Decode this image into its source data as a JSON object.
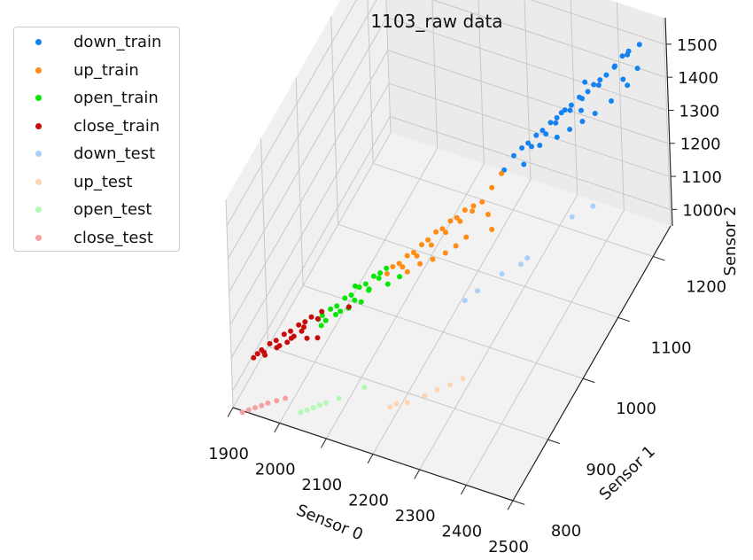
{
  "chart_data": {
    "type": "scatter",
    "title": "1103_raw data",
    "xlabel": "Sensor 0",
    "ylabel": "Sensor 1",
    "zlabel": "Sensor 2",
    "xlim": [
      1900,
      2500
    ],
    "ylim": [
      800,
      1250
    ],
    "zlim": [
      950,
      1580
    ],
    "xticks": [
      "1900",
      "2000",
      "2100",
      "2200",
      "2300",
      "2400",
      "2500"
    ],
    "yticks": [
      "800",
      "900",
      "1000",
      "1100",
      "1200"
    ],
    "zticks": [
      "1000",
      "1100",
      "1200",
      "1300",
      "1400",
      "1500"
    ],
    "legend_position": "upper-left",
    "grid": true,
    "series": [
      {
        "name": "down_train",
        "color": "#1482f0",
        "points": [
          [
            2470,
            1220,
            1540
          ],
          [
            2450,
            1215,
            1520
          ],
          [
            2440,
            1210,
            1510
          ],
          [
            2455,
            1205,
            1530
          ],
          [
            2430,
            1200,
            1490
          ],
          [
            2435,
            1195,
            1505
          ],
          [
            2420,
            1190,
            1480
          ],
          [
            2410,
            1185,
            1470
          ],
          [
            2400,
            1180,
            1460
          ],
          [
            2415,
            1175,
            1475
          ],
          [
            2395,
            1170,
            1455
          ],
          [
            2380,
            1165,
            1440
          ],
          [
            2390,
            1160,
            1450
          ],
          [
            2370,
            1155,
            1430
          ],
          [
            2360,
            1150,
            1420
          ],
          [
            2375,
            1145,
            1435
          ],
          [
            2350,
            1140,
            1410
          ],
          [
            2340,
            1135,
            1400
          ],
          [
            2355,
            1130,
            1415
          ],
          [
            2330,
            1125,
            1390
          ],
          [
            2320,
            1120,
            1380
          ],
          [
            2345,
            1115,
            1405
          ],
          [
            2310,
            1110,
            1370
          ],
          [
            2300,
            1105,
            1360
          ],
          [
            2325,
            1100,
            1385
          ],
          [
            2290,
            1095,
            1350
          ],
          [
            2465,
            1190,
            1470
          ],
          [
            2445,
            1170,
            1450
          ],
          [
            2425,
            1150,
            1440
          ],
          [
            2405,
            1140,
            1425
          ],
          [
            2385,
            1130,
            1410
          ],
          [
            2365,
            1120,
            1395
          ],
          [
            2335,
            1110,
            1375
          ],
          [
            2315,
            1090,
            1345
          ],
          [
            2280,
            1080,
            1330
          ],
          [
            2480,
            1200,
            1510
          ],
          [
            2460,
            1185,
            1495
          ],
          [
            2385,
            1175,
            1470
          ],
          [
            2395,
            1150,
            1435
          ],
          [
            2360,
            1140,
            1430
          ]
        ]
      },
      {
        "name": "up_train",
        "color": "#ff8c14",
        "points": [
          [
            2230,
            1080,
            1210
          ],
          [
            2215,
            1075,
            1200
          ],
          [
            2200,
            1070,
            1190
          ],
          [
            2220,
            1065,
            1205
          ],
          [
            2190,
            1060,
            1180
          ],
          [
            2180,
            1055,
            1175
          ],
          [
            2205,
            1050,
            1195
          ],
          [
            2170,
            1045,
            1165
          ],
          [
            2160,
            1040,
            1160
          ],
          [
            2185,
            1035,
            1180
          ],
          [
            2150,
            1030,
            1150
          ],
          [
            2140,
            1025,
            1140
          ],
          [
            2165,
            1020,
            1160
          ],
          [
            2130,
            1015,
            1130
          ],
          [
            2120,
            1010,
            1125
          ],
          [
            2145,
            1005,
            1145
          ],
          [
            2110,
            1000,
            1115
          ],
          [
            2100,
            995,
            1110
          ],
          [
            2125,
            990,
            1130
          ],
          [
            2095,
            985,
            1105
          ],
          [
            2240,
            1095,
            1230
          ],
          [
            2250,
            1070,
            1200
          ],
          [
            2225,
            1040,
            1175
          ],
          [
            2210,
            1030,
            1160
          ],
          [
            2195,
            1020,
            1150
          ],
          [
            2175,
            1010,
            1140
          ],
          [
            2155,
            1000,
            1135
          ],
          [
            2135,
            990,
            1120
          ],
          [
            2250,
            1110,
            1250
          ],
          [
            2265,
            1060,
            1180
          ]
        ]
      },
      {
        "name": "open_train",
        "color": "#05e605",
        "points": [
          [
            2090,
            990,
            1110
          ],
          [
            2080,
            985,
            1100
          ],
          [
            2070,
            980,
            1095
          ],
          [
            2085,
            975,
            1105
          ],
          [
            2060,
            970,
            1085
          ],
          [
            2050,
            965,
            1080
          ],
          [
            2075,
            960,
            1095
          ],
          [
            2040,
            955,
            1070
          ],
          [
            2030,
            950,
            1065
          ],
          [
            2055,
            945,
            1080
          ],
          [
            2020,
            940,
            1055
          ],
          [
            2010,
            935,
            1050
          ],
          [
            2035,
            930,
            1065
          ],
          [
            2000,
            925,
            1045
          ],
          [
            1995,
            920,
            1040
          ],
          [
            2015,
            915,
            1055
          ],
          [
            2065,
            950,
            1070
          ],
          [
            2045,
            940,
            1060
          ],
          [
            2025,
            930,
            1050
          ],
          [
            2100,
            980,
            1085
          ],
          [
            2110,
            1000,
            1075
          ],
          [
            2005,
            915,
            1035
          ],
          [
            2045,
            960,
            1090
          ],
          [
            2070,
            965,
            1080
          ]
        ]
      },
      {
        "name": "close_train",
        "color": "#c80a0a",
        "points": [
          [
            1980,
            920,
            1040
          ],
          [
            1970,
            915,
            1030
          ],
          [
            1960,
            910,
            1025
          ],
          [
            1975,
            905,
            1035
          ],
          [
            1950,
            900,
            1020
          ],
          [
            1940,
            895,
            1015
          ],
          [
            1965,
            890,
            1030
          ],
          [
            1930,
            885,
            1010
          ],
          [
            1920,
            880,
            1005
          ],
          [
            1945,
            875,
            1020
          ],
          [
            1910,
            870,
            1000
          ],
          [
            1905,
            865,
            995
          ],
          [
            1925,
            860,
            1010
          ],
          [
            1955,
            895,
            1010
          ],
          [
            1935,
            880,
            1000
          ],
          [
            1915,
            870,
            995
          ],
          [
            1990,
            925,
            1030
          ],
          [
            1985,
            900,
            1015
          ],
          [
            2000,
            910,
            1005
          ],
          [
            1900,
            860,
            990
          ],
          [
            2030,
            960,
            1020
          ],
          [
            1995,
            930,
            1045
          ],
          [
            1950,
            890,
            1005
          ],
          [
            1970,
            905,
            1020
          ]
        ]
      },
      {
        "name": "down_test",
        "color": "#a8d0f8",
        "points": [
          [
            2470,
            1080,
            1310
          ],
          [
            2440,
            1060,
            1300
          ],
          [
            2380,
            1010,
            1240
          ],
          [
            2370,
            1005,
            1225
          ],
          [
            2340,
            990,
            1210
          ],
          [
            2310,
            960,
            1200
          ],
          [
            2290,
            950,
            1180
          ]
        ]
      },
      {
        "name": "up_test",
        "color": "#ffd4b0",
        "points": [
          [
            2320,
            900,
            1050
          ],
          [
            2300,
            890,
            1040
          ],
          [
            2280,
            880,
            1035
          ],
          [
            2260,
            870,
            1025
          ],
          [
            2230,
            860,
            1010
          ],
          [
            2210,
            855,
            1005
          ],
          [
            2200,
            850,
            1000
          ]
        ]
      },
      {
        "name": "open_test",
        "color": "#b4f8b4",
        "points": [
          [
            2130,
            870,
            990
          ],
          [
            2090,
            850,
            975
          ],
          [
            2070,
            840,
            970
          ],
          [
            2060,
            835,
            968
          ],
          [
            2050,
            830,
            965
          ],
          [
            2040,
            825,
            962
          ],
          [
            2030,
            820,
            960
          ]
        ]
      },
      {
        "name": "close_test",
        "color": "#f8a0a0",
        "points": [
          [
            1990,
            830,
            965
          ],
          [
            1975,
            825,
            960
          ],
          [
            1960,
            820,
            955
          ],
          [
            1950,
            815,
            952
          ],
          [
            1940,
            810,
            950
          ],
          [
            1930,
            805,
            948
          ],
          [
            1920,
            800,
            945
          ]
        ]
      }
    ]
  }
}
